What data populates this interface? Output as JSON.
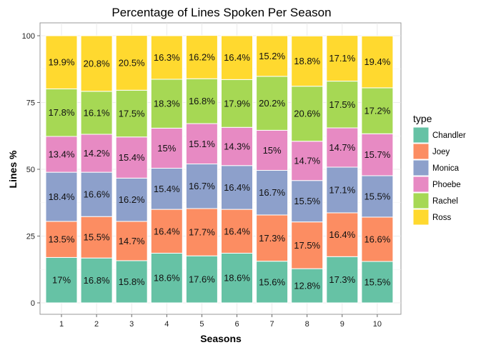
{
  "chart_data": {
    "type": "bar",
    "stacked": true,
    "title": "Percentage of Lines Spoken Per Season",
    "xlabel": "Seasons",
    "ylabel": "Lines %",
    "ylim": [
      0,
      100
    ],
    "y_ticks": [
      0,
      25,
      50,
      75,
      100
    ],
    "categories": [
      "1",
      "2",
      "3",
      "4",
      "5",
      "6",
      "7",
      "8",
      "9",
      "10"
    ],
    "legend_title": "type",
    "legend_position": "right",
    "grid": true,
    "series": [
      {
        "name": "Chandler",
        "color": "#66c2a5",
        "values": [
          17,
          16.8,
          15.8,
          18.6,
          17.6,
          18.6,
          15.6,
          12.8,
          17.3,
          15.5
        ]
      },
      {
        "name": "Joey",
        "color": "#fc8d62",
        "values": [
          13.5,
          15.5,
          14.7,
          16.4,
          17.7,
          16.4,
          17.3,
          17.5,
          16.4,
          16.6
        ]
      },
      {
        "name": "Monica",
        "color": "#8da0cb",
        "values": [
          18.4,
          16.6,
          16.2,
          15.4,
          16.7,
          16.4,
          16.7,
          15.5,
          17.1,
          15.5
        ]
      },
      {
        "name": "Phoebe",
        "color": "#e78ac3",
        "values": [
          13.4,
          14.2,
          15.4,
          15,
          15.1,
          14.3,
          15,
          14.7,
          14.7,
          15.7
        ]
      },
      {
        "name": "Rachel",
        "color": "#a6d854",
        "values": [
          17.8,
          16.1,
          17.5,
          18.3,
          16.8,
          17.9,
          20.2,
          20.6,
          17.5,
          17.2
        ]
      },
      {
        "name": "Ross",
        "color": "#ffd92f",
        "values": [
          19.9,
          20.8,
          20.5,
          16.3,
          16.2,
          16.4,
          15.2,
          18.8,
          17.1,
          19.4
        ]
      }
    ]
  }
}
